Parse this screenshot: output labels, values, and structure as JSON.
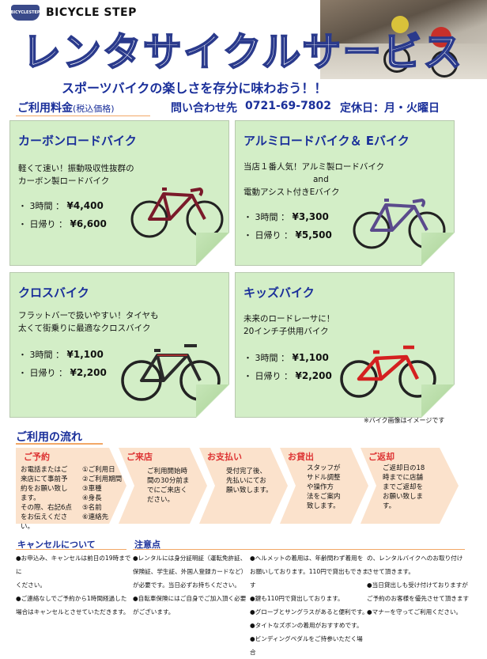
{
  "header": {
    "brand": "BICYCLE STEP",
    "logo_text": "BICYCLESTEP",
    "title": "レンタサイクルサービス",
    "subtitle": "スポーツバイクの楽しさを存分に味わおう！！"
  },
  "info": {
    "price_label": "ご利用料金",
    "price_note": "(税込価格)",
    "contact_label": "問い合わせ先",
    "phone": "0721-69-7802",
    "holiday": "定休日：月・火曜日"
  },
  "cards": [
    {
      "title": "カーボンロードバイク",
      "desc": [
        "軽くて速い！振動吸収性抜群の",
        "カーボン製ロードバイク"
      ],
      "prices": [
        {
          "label": "・ 3時間 ：",
          "value": "¥4,400"
        },
        {
          "label": "・ 日帰り ：",
          "value": "¥6,600"
        }
      ],
      "bike_color": "#7a1a2a"
    },
    {
      "title": "アルミロードバイク＆ Eバイク",
      "desc": [
        "当店１番人気！アルミ製ロードバイク",
        "and",
        "電動アシスト付きEバイク"
      ],
      "prices": [
        {
          "label": "・ 3時間 ：",
          "value": "¥3,300"
        },
        {
          "label": "・ 日帰り ：",
          "value": "¥5,500"
        }
      ],
      "bike_color": "#5a4a8c"
    },
    {
      "title": "クロスバイク",
      "desc": [
        "フラットバーで扱いやすい！タイヤも",
        "太くて街乗りに最適なクロスバイク"
      ],
      "prices": [
        {
          "label": "・ 3時間 ：",
          "value": "¥1,100"
        },
        {
          "label": "・ 日帰り ：",
          "value": "¥2,200"
        }
      ],
      "bike_color": "#2a2a2a"
    },
    {
      "title": "キッズバイク",
      "desc": [
        "未来のロードレーサに！",
        "20インチ子供用バイク"
      ],
      "prices": [
        {
          "label": "・ 3時間 ：",
          "value": "¥1,100"
        },
        {
          "label": "・ 日帰り ：",
          "value": "¥2,200"
        }
      ],
      "bike_color": "#d42020"
    }
  ],
  "image_note": "※バイク画像はイメージです",
  "flow": {
    "title": "ご利用の流れ",
    "steps": [
      {
        "title": "ご予約",
        "body": [
          "お電話またはご",
          "来店にて事前予",
          "約をお願い致し",
          "ます。",
          "その際、右記6点",
          "をお伝えください。"
        ],
        "list": [
          "①ご利用日",
          "②ご利用期間",
          "③車種",
          "④身長",
          "⑤名前",
          "⑥連絡先"
        ]
      },
      {
        "title": "ご来店",
        "body": [
          "ご利用開始時",
          "間の30分前ま",
          "でにご来店く",
          "ださい。"
        ]
      },
      {
        "title": "お支払い",
        "body": [
          "受付完了後、",
          "先払いにてお",
          "願い致します。"
        ]
      },
      {
        "title": "お貸出",
        "body": [
          "スタッフが",
          "サドル調整",
          "や操作方",
          "法をご案内",
          "致します。"
        ]
      },
      {
        "title": "ご返却",
        "body": [
          "ご返却日の18",
          "時までに店舗",
          "までご返却を",
          "お願い致しま",
          "す。"
        ]
      }
    ]
  },
  "cancel": {
    "title": "キャンセルについて",
    "lines": [
      "●お申込み、キャンセルは前日の19時までに",
      "ください。",
      "●ご連絡なしでご予約から1時間経過した",
      "場合はキャンセルとさせていただきます。"
    ]
  },
  "notes": {
    "title": "注意点",
    "col1": [
      "●レンタルには身分証明証（運転免許証、",
      "保険証、学生証、外国人登録カードなど）",
      "が必要です。当日必ずお持ちください。",
      "●自転車保険にはご自身でご加入頂く必要",
      "がございます。"
    ],
    "col2": [
      "●ヘルメットの着用は、年齢問わず着用を",
      "お願いしております。110円で貸出もできます",
      "●鍵も110円で貸出しております。",
      "●グローブとサングラスがあると便利です。",
      "●タイトなズボンの着用がおすすめです。",
      "●ビンディングペダルをご持参いただく場合"
    ],
    "col3": [
      "の、レンタルバイクへのお取り付け",
      "させて頂きます。",
      "●当日貸出しも受け付けておりますが",
      "ご予約のお客様を優先させて頂きます",
      "●マナーを守ってご利用ください。"
    ]
  }
}
